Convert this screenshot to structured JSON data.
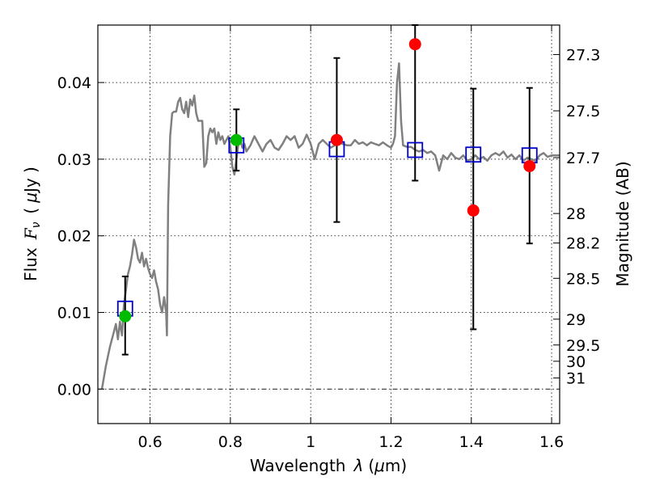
{
  "chart_data": {
    "type": "scatter",
    "xlabel": "Wavelength",
    "xlabel_lambda": "λ",
    "xlabel_unit_open": "(",
    "xlabel_unit_mu": "μ",
    "xlabel_unit_rest": "m)",
    "ylabel": "Flux",
    "ylabel_symbol": "F",
    "ylabel_subscript": "ν",
    "ylabel_unit_open": "(",
    "ylabel_unit_mu": "μ",
    "ylabel_unit_rest": "Jy )",
    "y2label": "Magnitude (AB)",
    "xlim": [
      0.47,
      1.62
    ],
    "ylim": [
      -0.0045,
      0.0475
    ],
    "grid": true,
    "x_ticks": [
      {
        "value": 0.6,
        "label": "0.6"
      },
      {
        "value": 0.8,
        "label": "0.8"
      },
      {
        "value": 1.0,
        "label": "1"
      },
      {
        "value": 1.2,
        "label": "1.2"
      },
      {
        "value": 1.4,
        "label": "1.4"
      },
      {
        "value": 1.6,
        "label": "1.6"
      }
    ],
    "y_ticks": [
      {
        "value": 0.0,
        "label": "0.00"
      },
      {
        "value": 0.01,
        "label": "0.01"
      },
      {
        "value": 0.02,
        "label": "0.02"
      },
      {
        "value": 0.03,
        "label": "0.03"
      },
      {
        "value": 0.04,
        "label": "0.04"
      }
    ],
    "mag_ticks": [
      {
        "mag": 27.3,
        "label": "27.3"
      },
      {
        "mag": 27.5,
        "label": "27.5"
      },
      {
        "mag": 27.7,
        "label": "27.7"
      },
      {
        "mag": 28,
        "label": "28"
      },
      {
        "mag": 28.2,
        "label": "28.2"
      },
      {
        "mag": 28.5,
        "label": "28.5"
      },
      {
        "mag": 29,
        "label": "29"
      },
      {
        "mag": 29.5,
        "label": "29.5"
      },
      {
        "mag": 30,
        "label": "30"
      },
      {
        "mag": 31,
        "label": "31"
      }
    ],
    "colors": {
      "sed": "#808080",
      "model_box": "#0000cc",
      "detection": "#ff0000",
      "hst": "#00bb00",
      "errorbar": "#000000"
    },
    "sed_model": {
      "x": [
        0.48,
        0.49,
        0.5,
        0.51,
        0.515,
        0.52,
        0.525,
        0.53,
        0.535,
        0.54,
        0.545,
        0.55,
        0.555,
        0.56,
        0.565,
        0.57,
        0.575,
        0.58,
        0.585,
        0.59,
        0.595,
        0.6,
        0.605,
        0.61,
        0.615,
        0.62,
        0.625,
        0.63,
        0.635,
        0.64,
        0.642,
        0.645,
        0.65,
        0.655,
        0.66,
        0.665,
        0.67,
        0.675,
        0.68,
        0.685,
        0.69,
        0.695,
        0.7,
        0.705,
        0.71,
        0.715,
        0.72,
        0.725,
        0.73,
        0.735,
        0.74,
        0.745,
        0.75,
        0.755,
        0.76,
        0.765,
        0.77,
        0.775,
        0.78,
        0.785,
        0.79,
        0.795,
        0.8,
        0.805,
        0.81,
        0.815,
        0.82,
        0.825,
        0.83,
        0.835,
        0.84,
        0.85,
        0.86,
        0.87,
        0.88,
        0.89,
        0.9,
        0.91,
        0.92,
        0.93,
        0.94,
        0.95,
        0.96,
        0.97,
        0.98,
        0.99,
        1.0,
        1.01,
        1.02,
        1.03,
        1.04,
        1.05,
        1.06,
        1.07,
        1.08,
        1.09,
        1.1,
        1.11,
        1.12,
        1.13,
        1.14,
        1.15,
        1.16,
        1.17,
        1.18,
        1.19,
        1.2,
        1.205,
        1.21,
        1.215,
        1.22,
        1.225,
        1.23,
        1.24,
        1.25,
        1.26,
        1.27,
        1.28,
        1.29,
        1.3,
        1.31,
        1.315,
        1.32,
        1.33,
        1.34,
        1.35,
        1.36,
        1.37,
        1.38,
        1.39,
        1.4,
        1.41,
        1.42,
        1.43,
        1.44,
        1.45,
        1.46,
        1.47,
        1.48,
        1.49,
        1.5,
        1.51,
        1.52,
        1.53,
        1.54,
        1.55,
        1.56,
        1.57,
        1.58,
        1.59,
        1.6,
        1.61,
        1.62
      ],
      "y": [
        0.0,
        0.003,
        0.0055,
        0.0075,
        0.0085,
        0.0065,
        0.0088,
        0.007,
        0.011,
        0.013,
        0.015,
        0.016,
        0.0175,
        0.0195,
        0.0185,
        0.017,
        0.0165,
        0.0178,
        0.016,
        0.017,
        0.0158,
        0.015,
        0.0145,
        0.0155,
        0.014,
        0.013,
        0.011,
        0.01,
        0.012,
        0.01,
        0.007,
        0.024,
        0.033,
        0.036,
        0.0362,
        0.0362,
        0.0375,
        0.038,
        0.0365,
        0.036,
        0.0375,
        0.0355,
        0.0378,
        0.037,
        0.0383,
        0.036,
        0.035,
        0.035,
        0.035,
        0.029,
        0.0295,
        0.033,
        0.034,
        0.0335,
        0.034,
        0.032,
        0.0335,
        0.0325,
        0.033,
        0.032,
        0.0325,
        0.033,
        0.0315,
        0.029,
        0.028,
        0.03,
        0.032,
        0.0325,
        0.0315,
        0.032,
        0.031,
        0.0318,
        0.033,
        0.032,
        0.031,
        0.032,
        0.0325,
        0.0315,
        0.0312,
        0.032,
        0.033,
        0.0325,
        0.033,
        0.0315,
        0.032,
        0.0332,
        0.032,
        0.03,
        0.032,
        0.0325,
        0.032,
        0.0315,
        0.0318,
        0.0322,
        0.032,
        0.0318,
        0.0318,
        0.0325,
        0.032,
        0.0322,
        0.0318,
        0.0322,
        0.032,
        0.0318,
        0.0322,
        0.0318,
        0.0315,
        0.032,
        0.033,
        0.04,
        0.0425,
        0.035,
        0.0318,
        0.0316,
        0.0316,
        0.0312,
        0.031,
        0.0312,
        0.0308,
        0.031,
        0.0305,
        0.0295,
        0.0285,
        0.0305,
        0.03,
        0.0308,
        0.0302,
        0.03,
        0.0305,
        0.0298,
        0.03,
        0.0305,
        0.03,
        0.0303,
        0.0298,
        0.0305,
        0.0308,
        0.0305,
        0.031,
        0.0302,
        0.0306,
        0.03,
        0.0305,
        0.0298,
        0.0302,
        0.03,
        0.0298,
        0.0305,
        0.0308,
        0.0303,
        0.0305,
        0.0305,
        0.0305
      ]
    },
    "model_photometry": {
      "x": [
        0.538,
        0.815,
        1.065,
        1.26,
        1.405,
        1.545
      ],
      "y": [
        0.0105,
        0.0318,
        0.0313,
        0.0312,
        0.0306,
        0.0305
      ]
    },
    "detections": [
      {
        "x": 1.065,
        "y": 0.0325,
        "err_lo": 0.0218,
        "err_hi": 0.0432
      },
      {
        "x": 1.26,
        "y": 0.045,
        "err_lo": 0.0272,
        "err_hi": 0.0475
      },
      {
        "x": 1.405,
        "y": 0.0233,
        "err_lo": 0.0078,
        "err_hi": 0.0392
      },
      {
        "x": 1.545,
        "y": 0.0291,
        "err_lo": 0.019,
        "err_hi": 0.0393
      }
    ],
    "hst_points": [
      {
        "x": 0.538,
        "y": 0.0095,
        "err_lo": 0.0045,
        "err_hi": 0.0147
      },
      {
        "x": 0.815,
        "y": 0.0325,
        "err_lo": 0.0285,
        "err_hi": 0.0365
      }
    ]
  }
}
